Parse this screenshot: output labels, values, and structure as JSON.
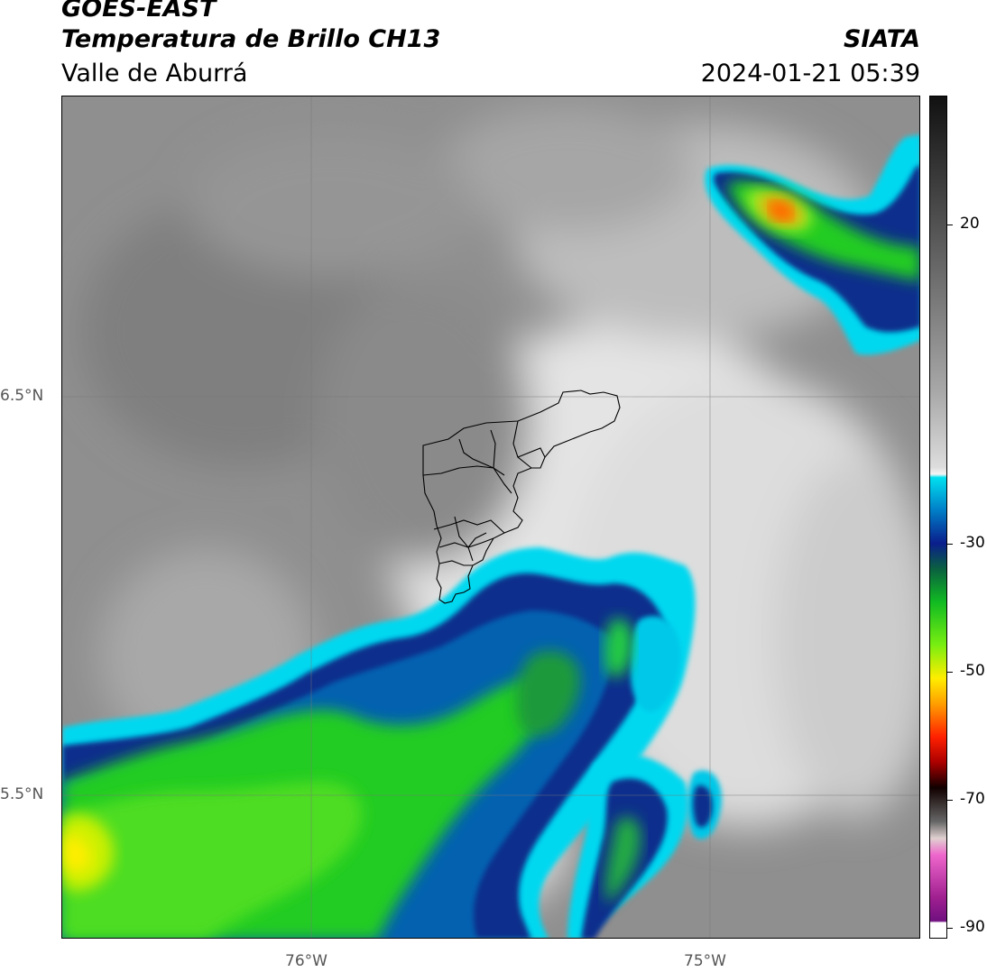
{
  "header": {
    "satellite": "GOES-EAST",
    "product": "Temperatura de Brillo CH13",
    "region": "Valle de Aburrá",
    "agency": "SIATA",
    "datetime": "2024-01-21 05:39"
  },
  "map": {
    "lon_range": [
      -76.62,
      -74.47
    ],
    "lat_range": [
      5.14,
      7.25
    ],
    "lat_ticks": [
      {
        "value": 6.5,
        "label": "6.5°N"
      },
      {
        "value": 5.5,
        "label": "5.5°N"
      }
    ],
    "lon_ticks": [
      {
        "value": -76.0,
        "label": "76°W"
      },
      {
        "value": -75.0,
        "label": "75°W"
      }
    ],
    "gridlines": true
  },
  "colorbar": {
    "range": [
      -90,
      30
    ],
    "ticks": [
      {
        "value": 20,
        "label": "20"
      },
      {
        "value": -30,
        "label": "-30"
      },
      {
        "value": -50,
        "label": "-50"
      },
      {
        "value": -70,
        "label": "-70"
      },
      {
        "value": -90,
        "label": "-90"
      }
    ],
    "colors": {
      "cyan": "#00e0f0",
      "blue": "#0a2d8c",
      "green": "#22cc22",
      "yellow": "#ffee00",
      "orange": "#ff7a00",
      "red": "#ee0000",
      "magenta": "#d040c0",
      "purple": "#7a1080"
    }
  }
}
